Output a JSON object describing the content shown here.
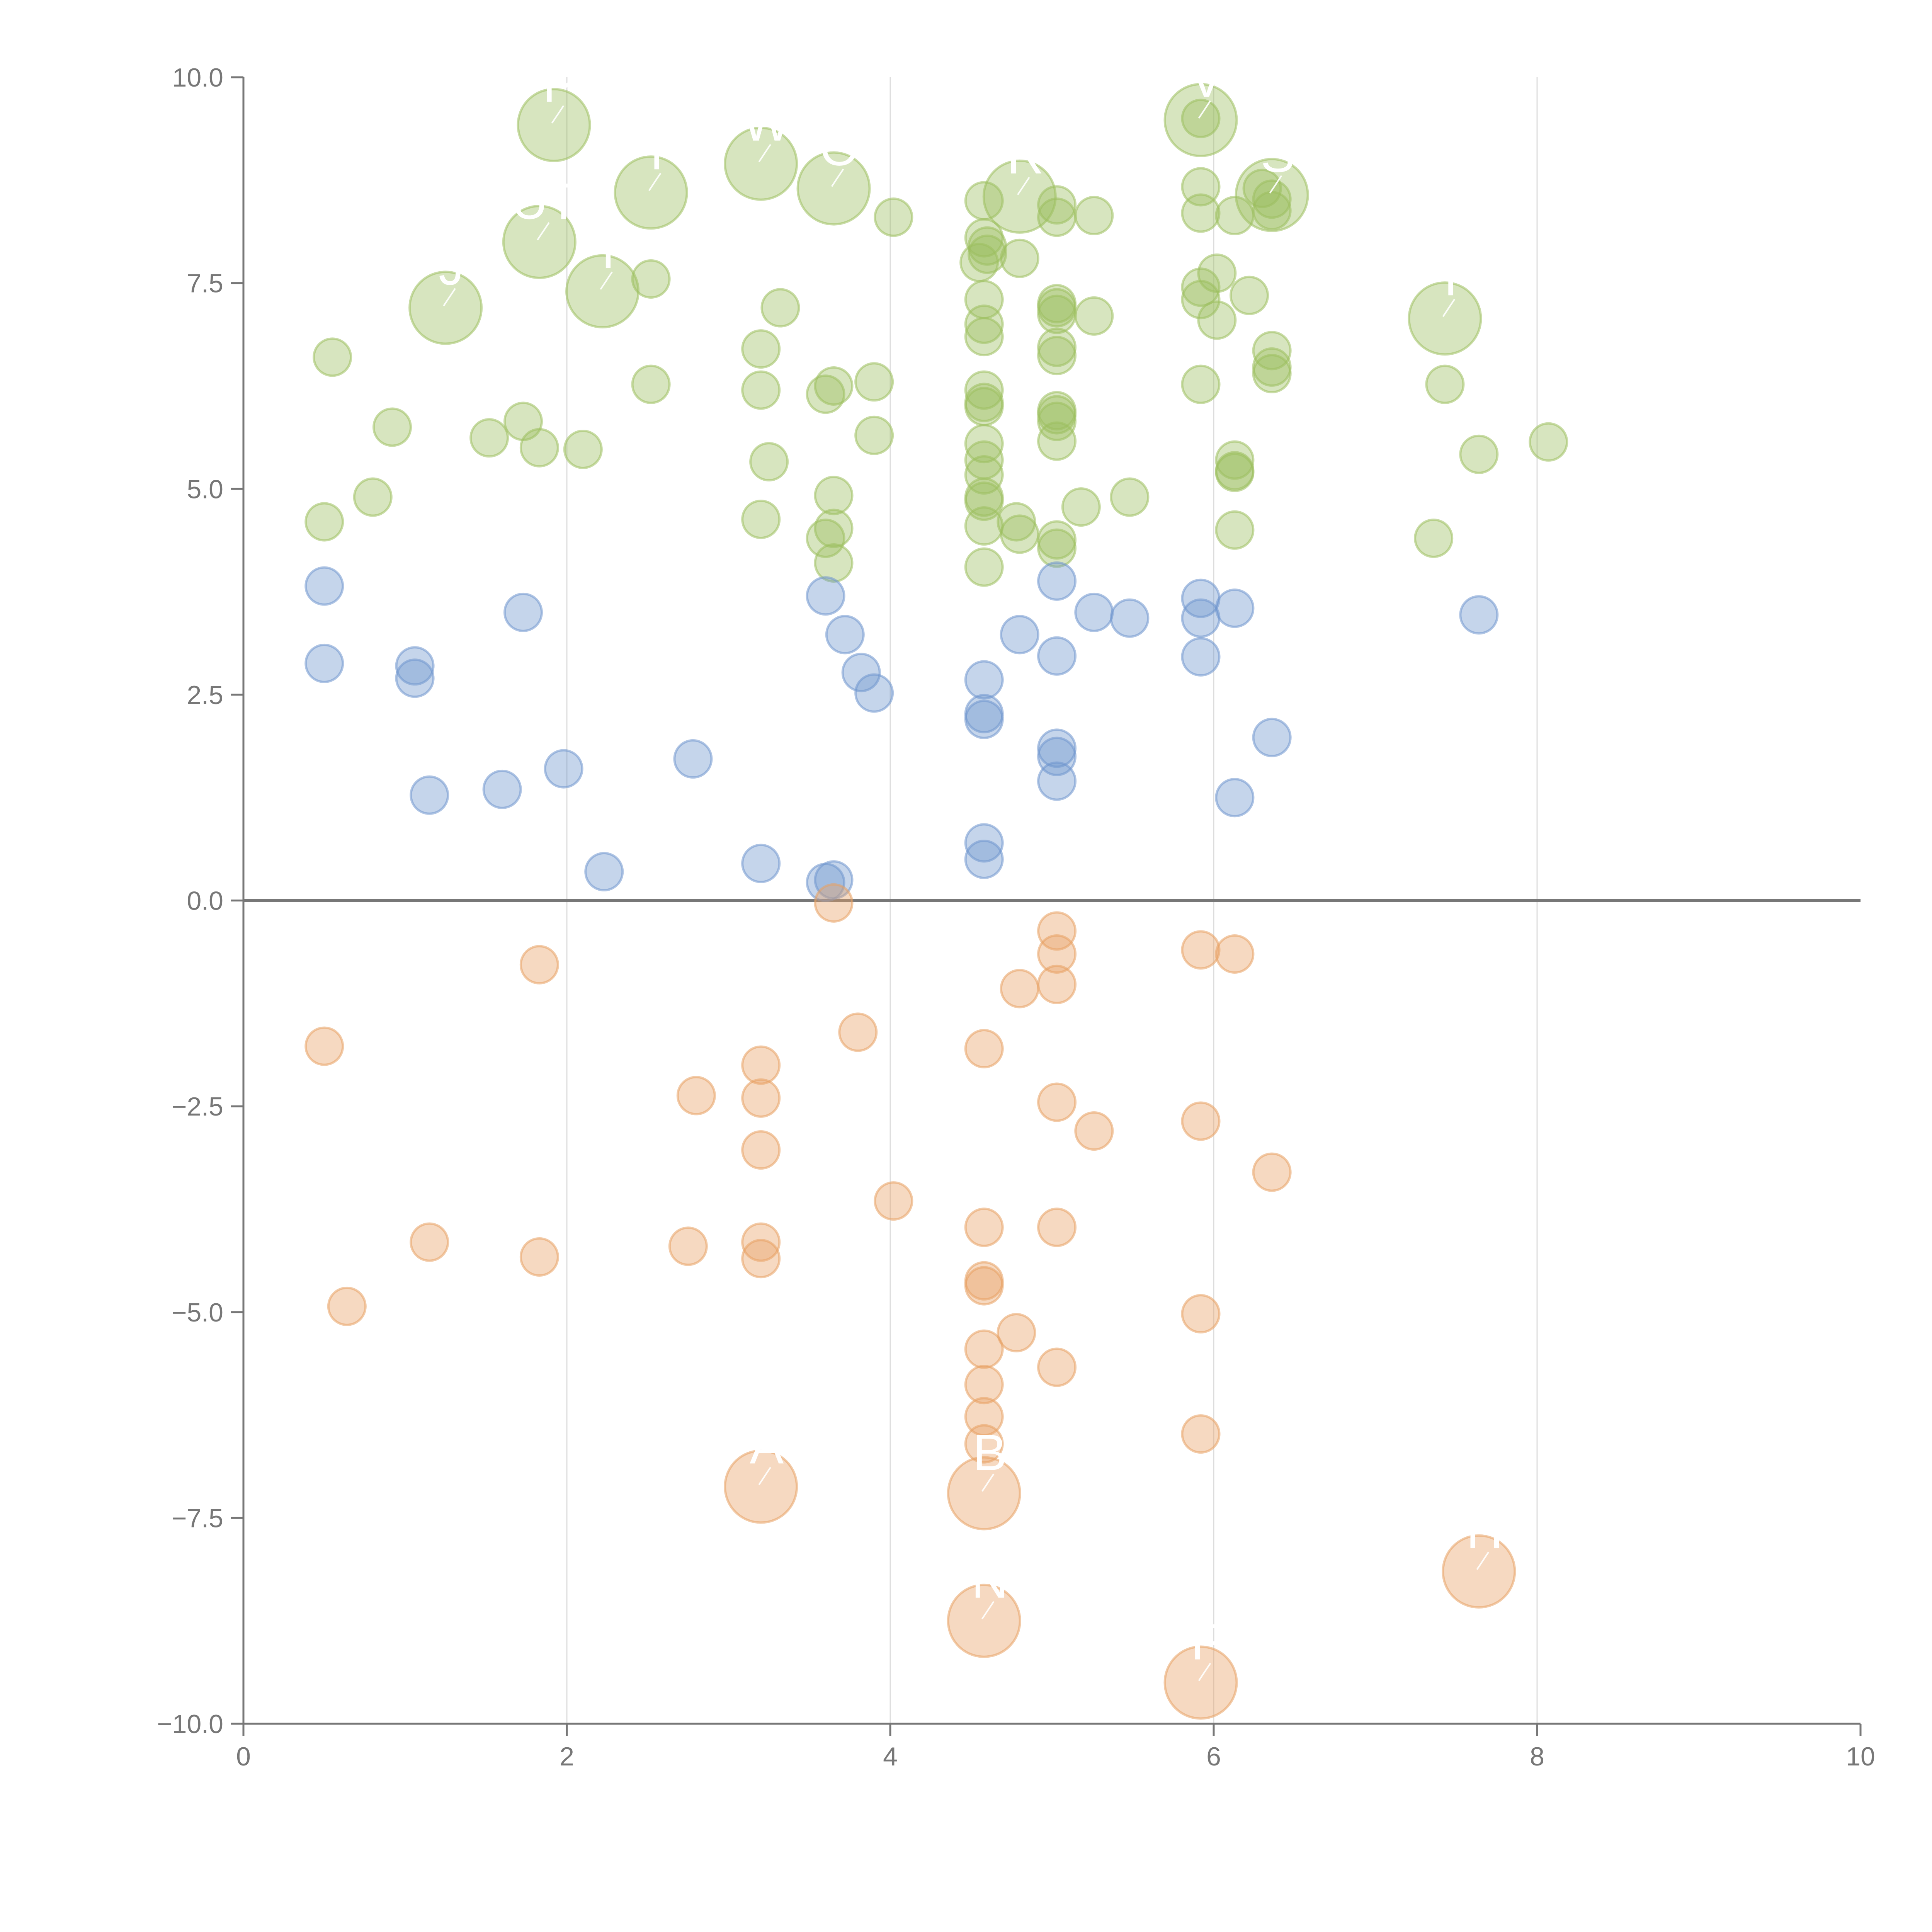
{
  "chart_data": {
    "type": "scatter",
    "title": "",
    "xlabel": "",
    "ylabel": "",
    "xlim": [
      0,
      10
    ],
    "ylim": [
      -10,
      10
    ],
    "x_ticks": [
      0,
      2,
      4,
      6,
      8,
      10
    ],
    "x_tick_labels": [
      "0",
      "2",
      "4",
      "6",
      "8",
      "10"
    ],
    "y_ticks": [
      -10,
      -7.5,
      -5,
      -2.5,
      0,
      2.5,
      5,
      7.5,
      10
    ],
    "y_tick_labels": [
      "−10.0",
      "−7.5",
      "−5.0",
      "−2.5",
      "0.0",
      "2.5",
      "5.0",
      "7.5",
      "10.0"
    ],
    "vertical_gridlines_at": [
      2,
      4,
      6,
      8
    ],
    "reference_line_y": 0,
    "colors": {
      "green": "#9cbf5e",
      "blue": "#6f95cd",
      "orange": "#e8a063",
      "axis": "#777777",
      "grid": "#dddddd",
      "zero_line": "#777777",
      "label": "#ffffff"
    },
    "series": [
      {
        "name": "green",
        "color": "#9cbf5e",
        "points": [
          {
            "x": 0.5,
            "y": 4.6
          },
          {
            "x": 0.55,
            "y": 6.6
          },
          {
            "x": 0.8,
            "y": 4.9
          },
          {
            "x": 0.92,
            "y": 5.75
          },
          {
            "x": 1.52,
            "y": 5.62
          },
          {
            "x": 1.73,
            "y": 5.82
          },
          {
            "x": 1.83,
            "y": 5.5
          },
          {
            "x": 2.1,
            "y": 5.48
          },
          {
            "x": 2.52,
            "y": 6.27
          },
          {
            "x": 2.52,
            "y": 7.55
          },
          {
            "x": 3.2,
            "y": 6.7
          },
          {
            "x": 3.2,
            "y": 6.2
          },
          {
            "x": 3.25,
            "y": 5.33
          },
          {
            "x": 3.2,
            "y": 4.63
          },
          {
            "x": 3.32,
            "y": 7.2
          },
          {
            "x": 3.6,
            "y": 6.15
          },
          {
            "x": 3.65,
            "y": 6.25
          },
          {
            "x": 3.65,
            "y": 4.92
          },
          {
            "x": 3.65,
            "y": 4.52
          },
          {
            "x": 3.6,
            "y": 4.4
          },
          {
            "x": 3.65,
            "y": 4.1
          },
          {
            "x": 3.9,
            "y": 6.3
          },
          {
            "x": 3.9,
            "y": 5.65
          },
          {
            "x": 4.02,
            "y": 8.3
          },
          {
            "x": 4.58,
            "y": 8.5
          },
          {
            "x": 4.58,
            "y": 8.05
          },
          {
            "x": 4.6,
            "y": 7.95
          },
          {
            "x": 4.6,
            "y": 7.85
          },
          {
            "x": 4.55,
            "y": 7.75
          },
          {
            "x": 4.58,
            "y": 7.3
          },
          {
            "x": 4.58,
            "y": 7.0
          },
          {
            "x": 4.58,
            "y": 6.85
          },
          {
            "x": 4.58,
            "y": 6.2
          },
          {
            "x": 4.58,
            "y": 6.05
          },
          {
            "x": 4.58,
            "y": 6.0
          },
          {
            "x": 4.58,
            "y": 5.55
          },
          {
            "x": 4.58,
            "y": 5.35
          },
          {
            "x": 4.58,
            "y": 5.17
          },
          {
            "x": 4.58,
            "y": 4.9
          },
          {
            "x": 4.58,
            "y": 4.85
          },
          {
            "x": 4.58,
            "y": 4.55
          },
          {
            "x": 4.58,
            "y": 4.05
          },
          {
            "x": 4.78,
            "y": 4.6
          },
          {
            "x": 4.8,
            "y": 4.45
          },
          {
            "x": 4.8,
            "y": 7.8
          },
          {
            "x": 5.03,
            "y": 8.45
          },
          {
            "x": 5.03,
            "y": 8.3
          },
          {
            "x": 5.03,
            "y": 7.25
          },
          {
            "x": 5.03,
            "y": 7.2
          },
          {
            "x": 5.03,
            "y": 7.12
          },
          {
            "x": 5.03,
            "y": 6.72
          },
          {
            "x": 5.03,
            "y": 6.62
          },
          {
            "x": 5.03,
            "y": 5.95
          },
          {
            "x": 5.03,
            "y": 5.9
          },
          {
            "x": 5.03,
            "y": 5.82
          },
          {
            "x": 5.03,
            "y": 5.58
          },
          {
            "x": 5.03,
            "y": 4.38
          },
          {
            "x": 5.03,
            "y": 4.28
          },
          {
            "x": 5.18,
            "y": 4.78
          },
          {
            "x": 5.26,
            "y": 8.32
          },
          {
            "x": 5.26,
            "y": 7.1
          },
          {
            "x": 5.48,
            "y": 4.9
          },
          {
            "x": 5.92,
            "y": 9.5
          },
          {
            "x": 5.92,
            "y": 8.67
          },
          {
            "x": 5.92,
            "y": 8.35
          },
          {
            "x": 5.92,
            "y": 7.45
          },
          {
            "x": 5.92,
            "y": 7.3
          },
          {
            "x": 5.92,
            "y": 6.27
          },
          {
            "x": 6.02,
            "y": 7.62
          },
          {
            "x": 6.02,
            "y": 7.05
          },
          {
            "x": 6.13,
            "y": 8.32
          },
          {
            "x": 6.13,
            "y": 5.35
          },
          {
            "x": 6.13,
            "y": 5.22
          },
          {
            "x": 6.13,
            "y": 5.2
          },
          {
            "x": 6.13,
            "y": 4.5
          },
          {
            "x": 6.22,
            "y": 7.35
          },
          {
            "x": 6.3,
            "y": 8.65
          },
          {
            "x": 6.36,
            "y": 8.52
          },
          {
            "x": 6.36,
            "y": 8.38
          },
          {
            "x": 6.36,
            "y": 6.68
          },
          {
            "x": 6.36,
            "y": 6.48
          },
          {
            "x": 6.36,
            "y": 6.4
          },
          {
            "x": 7.36,
            "y": 4.4
          },
          {
            "x": 7.43,
            "y": 6.27
          },
          {
            "x": 7.64,
            "y": 5.42
          },
          {
            "x": 8.07,
            "y": 5.57
          },
          {
            "x": 1.25,
            "y": 7.2,
            "big": true,
            "label": "J"
          },
          {
            "x": 1.83,
            "y": 8.0,
            "big": true,
            "label": "UT"
          },
          {
            "x": 1.92,
            "y": 9.42,
            "big": true,
            "label": "P"
          },
          {
            "x": 2.22,
            "y": 7.4,
            "big": true,
            "label": "Y"
          },
          {
            "x": 2.52,
            "y": 8.6,
            "big": true,
            "label": "T"
          },
          {
            "x": 3.2,
            "y": 8.95,
            "big": true,
            "label": "W"
          },
          {
            "x": 3.65,
            "y": 8.65,
            "big": true,
            "label": "O"
          },
          {
            "x": 4.8,
            "y": 8.55,
            "big": true,
            "label": "R"
          },
          {
            "x": 5.92,
            "y": 9.48,
            "big": true,
            "label": "V"
          },
          {
            "x": 6.36,
            "y": 8.57,
            "big": true,
            "label": "S"
          },
          {
            "x": 7.43,
            "y": 7.07,
            "big": true,
            "label": "I"
          }
        ]
      },
      {
        "name": "blue",
        "color": "#6f95cd",
        "points": [
          {
            "x": 0.5,
            "y": 3.82
          },
          {
            "x": 0.5,
            "y": 2.88
          },
          {
            "x": 1.06,
            "y": 2.85
          },
          {
            "x": 1.06,
            "y": 2.7
          },
          {
            "x": 1.15,
            "y": 1.28
          },
          {
            "x": 1.6,
            "y": 1.35
          },
          {
            "x": 1.73,
            "y": 3.5
          },
          {
            "x": 1.98,
            "y": 1.6
          },
          {
            "x": 2.23,
            "y": 0.35
          },
          {
            "x": 2.78,
            "y": 1.72
          },
          {
            "x": 3.2,
            "y": 0.45
          },
          {
            "x": 3.6,
            "y": 0.22
          },
          {
            "x": 3.65,
            "y": 0.25
          },
          {
            "x": 3.6,
            "y": 3.7
          },
          {
            "x": 3.72,
            "y": 3.23
          },
          {
            "x": 3.82,
            "y": 2.77
          },
          {
            "x": 3.9,
            "y": 2.52
          },
          {
            "x": 4.58,
            "y": 2.68
          },
          {
            "x": 4.58,
            "y": 2.27
          },
          {
            "x": 4.58,
            "y": 2.2
          },
          {
            "x": 4.58,
            "y": 0.7
          },
          {
            "x": 4.58,
            "y": 0.5
          },
          {
            "x": 4.8,
            "y": 3.23
          },
          {
            "x": 5.03,
            "y": 3.88
          },
          {
            "x": 5.03,
            "y": 2.97
          },
          {
            "x": 5.03,
            "y": 1.85
          },
          {
            "x": 5.03,
            "y": 1.75
          },
          {
            "x": 5.03,
            "y": 1.45
          },
          {
            "x": 5.26,
            "y": 3.5
          },
          {
            "x": 5.48,
            "y": 3.43
          },
          {
            "x": 5.92,
            "y": 3.67
          },
          {
            "x": 5.92,
            "y": 3.43
          },
          {
            "x": 5.92,
            "y": 2.96
          },
          {
            "x": 6.13,
            "y": 3.55
          },
          {
            "x": 6.13,
            "y": 1.25
          },
          {
            "x": 6.36,
            "y": 1.98
          },
          {
            "x": 7.64,
            "y": 3.47
          }
        ]
      },
      {
        "name": "orange",
        "color": "#e8a063",
        "points": [
          {
            "x": 0.5,
            "y": -1.77
          },
          {
            "x": 0.64,
            "y": -4.93
          },
          {
            "x": 1.15,
            "y": -4.15
          },
          {
            "x": 1.83,
            "y": -0.78
          },
          {
            "x": 1.83,
            "y": -4.33
          },
          {
            "x": 2.75,
            "y": -4.2
          },
          {
            "x": 2.8,
            "y": -2.37
          },
          {
            "x": 3.2,
            "y": -2.0
          },
          {
            "x": 3.2,
            "y": -2.4
          },
          {
            "x": 3.2,
            "y": -3.03
          },
          {
            "x": 3.2,
            "y": -4.15
          },
          {
            "x": 3.2,
            "y": -4.35
          },
          {
            "x": 3.65,
            "y": -0.03
          },
          {
            "x": 3.8,
            "y": -1.6
          },
          {
            "x": 4.02,
            "y": -3.65
          },
          {
            "x": 4.58,
            "y": -1.8
          },
          {
            "x": 4.58,
            "y": -3.97
          },
          {
            "x": 4.58,
            "y": -4.62
          },
          {
            "x": 4.58,
            "y": -4.68
          },
          {
            "x": 4.58,
            "y": -5.45
          },
          {
            "x": 4.58,
            "y": -5.88
          },
          {
            "x": 4.58,
            "y": -6.27
          },
          {
            "x": 4.58,
            "y": -6.6
          },
          {
            "x": 4.8,
            "y": -1.07
          },
          {
            "x": 4.78,
            "y": -5.25
          },
          {
            "x": 5.03,
            "y": -0.37
          },
          {
            "x": 5.03,
            "y": -0.65
          },
          {
            "x": 5.03,
            "y": -1.02
          },
          {
            "x": 5.03,
            "y": -2.45
          },
          {
            "x": 5.03,
            "y": -3.97
          },
          {
            "x": 5.03,
            "y": -5.67
          },
          {
            "x": 5.26,
            "y": -2.8
          },
          {
            "x": 5.92,
            "y": -0.6
          },
          {
            "x": 5.92,
            "y": -2.68
          },
          {
            "x": 5.92,
            "y": -5.02
          },
          {
            "x": 5.92,
            "y": -6.48
          },
          {
            "x": 6.13,
            "y": -0.65
          },
          {
            "x": 6.36,
            "y": -3.3
          },
          {
            "x": 3.2,
            "y": -7.12,
            "big": true,
            "label": "A"
          },
          {
            "x": 4.58,
            "y": -7.2,
            "big": true,
            "label": "B"
          },
          {
            "x": 4.58,
            "y": -8.75,
            "big": true,
            "label": "N"
          },
          {
            "x": 5.92,
            "y": -9.5,
            "big": true,
            "label": "F"
          },
          {
            "x": 7.64,
            "y": -8.15,
            "big": true,
            "label": "H"
          }
        ]
      }
    ]
  }
}
